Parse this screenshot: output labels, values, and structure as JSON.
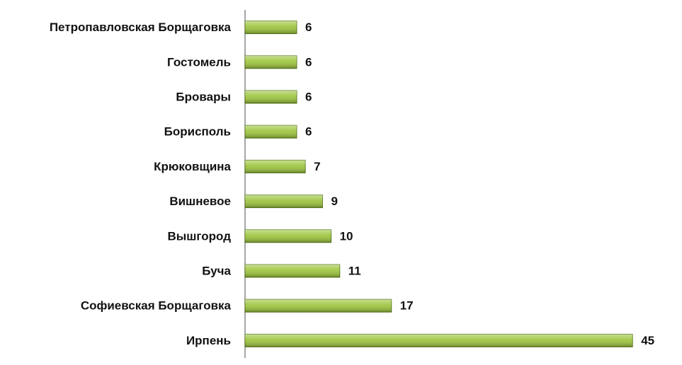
{
  "chart_data": {
    "type": "bar",
    "orientation": "horizontal",
    "categories": [
      "Петропавловская Борщаговка",
      "Гостомель",
      "Бровары",
      "Борисполь",
      "Крюковщина",
      "Вишневое",
      "Вышгород",
      "Буча",
      "Софиевская Борщаговка",
      "Ирпень"
    ],
    "values": [
      6,
      6,
      6,
      6,
      7,
      9,
      10,
      11,
      17,
      45
    ],
    "color": "#9bc43a",
    "xlim": [
      0,
      50
    ]
  }
}
